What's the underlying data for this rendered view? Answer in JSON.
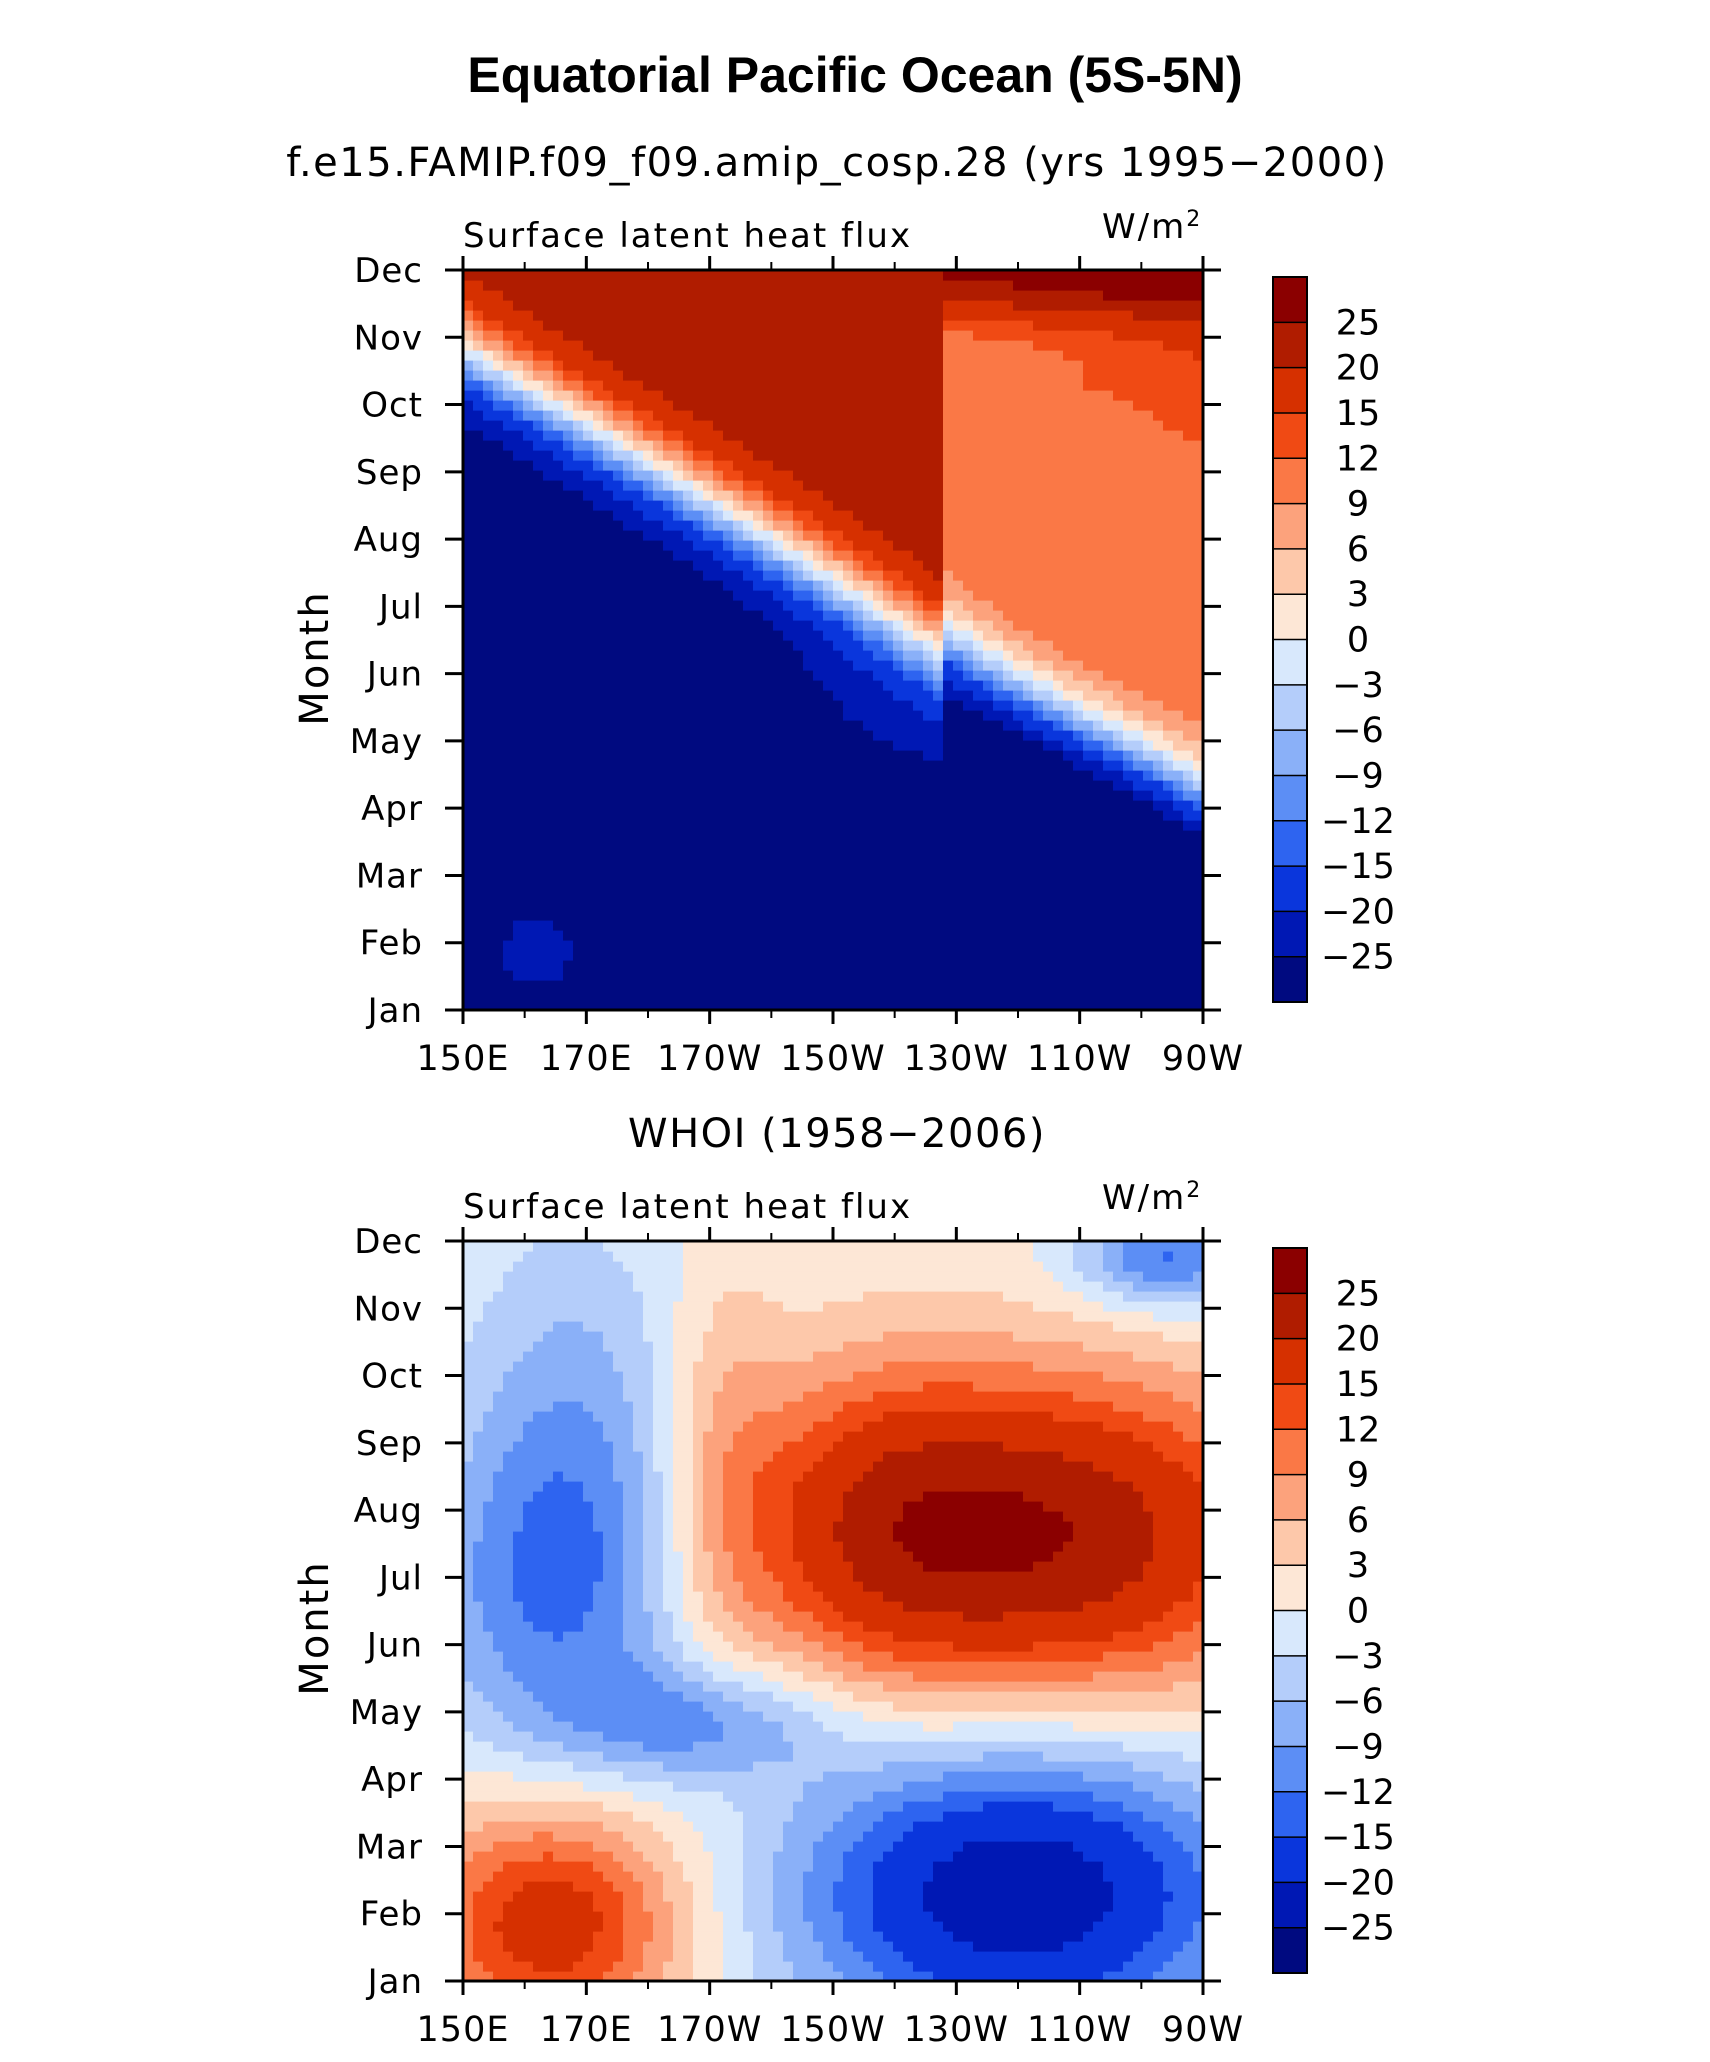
{
  "figure": {
    "title": "Equatorial Pacific Ocean (5S-5N)"
  },
  "chart_data": [
    {
      "type": "heatmap",
      "subtitle": "f.e15.FAMIP.f09_f09.amip_cosp.28 (yrs 1995−2000)",
      "left_label": "Surface latent heat flux",
      "units_label": "W/m",
      "units_superscript": "2",
      "ylabel": "Month",
      "x_ticks": [
        "150E",
        "170E",
        "170W",
        "150W",
        "130W",
        "110W",
        "90W"
      ],
      "y_ticks": [
        "Jan",
        "Feb",
        "Mar",
        "Apr",
        "May",
        "Jun",
        "Jul",
        "Aug",
        "Sep",
        "Oct",
        "Nov",
        "Dec"
      ],
      "colorbar_levels": [
        "25",
        "20",
        "15",
        "12",
        "9",
        "6",
        "3",
        "0",
        "−3",
        "−6",
        "−9",
        "−12",
        "−15",
        "−20",
        "−25"
      ],
      "field": "model"
    },
    {
      "type": "heatmap",
      "subtitle": "WHOI (1958−2006)",
      "left_label": "Surface latent heat flux",
      "units_label": "W/m",
      "units_superscript": "2",
      "ylabel": "Month",
      "x_ticks": [
        "150E",
        "170E",
        "170W",
        "150W",
        "130W",
        "110W",
        "90W"
      ],
      "y_ticks": [
        "Jan",
        "Feb",
        "Mar",
        "Apr",
        "May",
        "Jun",
        "Jul",
        "Aug",
        "Sep",
        "Oct",
        "Nov",
        "Dec"
      ],
      "colorbar_levels": [
        "25",
        "20",
        "15",
        "12",
        "9",
        "6",
        "3",
        "0",
        "−3",
        "−6",
        "−9",
        "−12",
        "−15",
        "−20",
        "−25"
      ],
      "field": "obs"
    }
  ],
  "colors": {
    "scale": [
      "#8b0000",
      "#b01c00",
      "#d63000",
      "#f04a14",
      "#fa7846",
      "#fca27c",
      "#fdc8aa",
      "#fde7d6",
      "#d8e8fc",
      "#b4cdfa",
      "#8ab0f8",
      "#5c8ef5",
      "#2e64f0",
      "#0a36dc",
      "#0018b4",
      "#000a80"
    ]
  }
}
